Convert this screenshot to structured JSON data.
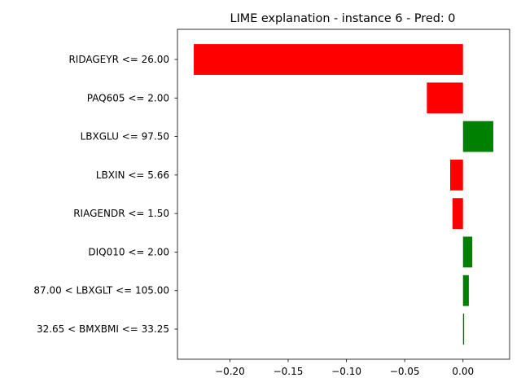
{
  "chart_data": {
    "type": "bar",
    "orientation": "horizontal",
    "title": "LIME explanation - instance 6 - Pred: 0",
    "xlabel": "",
    "ylabel": "",
    "xlim": [
      -0.245,
      0.04
    ],
    "xticks": [
      -0.2,
      -0.15,
      -0.1,
      -0.05,
      0.0
    ],
    "xtick_labels": [
      "−0.20",
      "−0.15",
      "−0.10",
      "−0.05",
      "0.00"
    ],
    "grid": false,
    "categories": [
      "RIDAGEYR <= 26.00",
      "PAQ605 <= 2.00",
      "LBXGLU <= 97.50",
      "LBXIN <= 5.66",
      "RIAGENDR <= 1.50",
      "DIQ010 <= 2.00",
      "87.00 < LBXGLT <= 105.00",
      "32.65 < BMXBMI <= 33.25"
    ],
    "values": [
      -0.231,
      -0.031,
      0.026,
      -0.011,
      -0.009,
      0.008,
      0.005,
      0.001
    ],
    "colors": {
      "positive": "#008000",
      "negative": "#ff0000"
    }
  }
}
